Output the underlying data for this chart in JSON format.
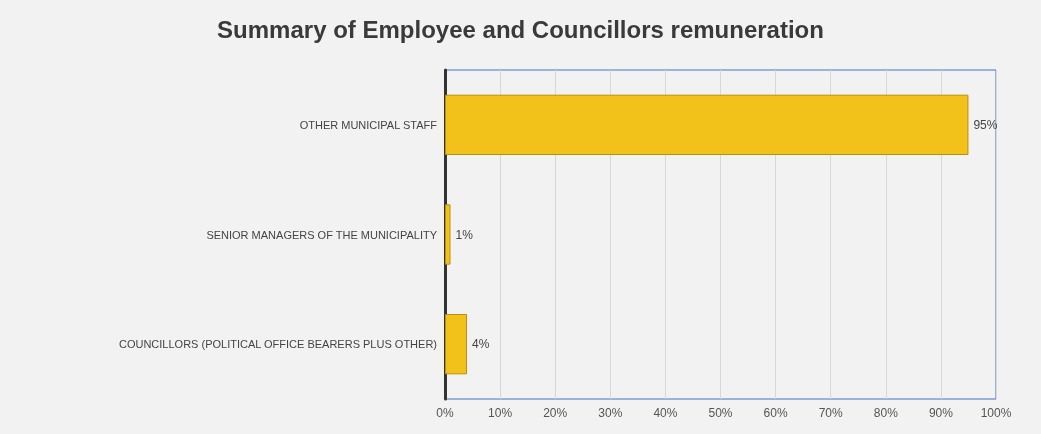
{
  "chart_data": {
    "type": "bar",
    "orientation": "horizontal",
    "title": "Summary of Employee and Councillors remuneration",
    "categories": [
      "OTHER MUNICIPAL STAFF",
      "SENIOR MANAGERS OF THE MUNICIPALITY",
      "COUNCILLORS (POLITICAL OFFICE BEARERS PLUS OTHER)"
    ],
    "values": [
      95,
      1,
      4
    ],
    "color": "#f2c21b",
    "value_labels": [
      "95%",
      "1%",
      "4%"
    ],
    "xlim": [
      0,
      100
    ],
    "xticks": [
      {
        "value": 0,
        "label": "0%"
      },
      {
        "value": 10,
        "label": "10%"
      },
      {
        "value": 20,
        "label": "20%"
      },
      {
        "value": 30,
        "label": "30%"
      },
      {
        "value": 40,
        "label": "40%"
      },
      {
        "value": 50,
        "label": "50%"
      },
      {
        "value": 60,
        "label": "60%"
      },
      {
        "value": 70,
        "label": "70%"
      },
      {
        "value": 80,
        "label": "80%"
      },
      {
        "value": 90,
        "label": "90%"
      },
      {
        "value": 100,
        "label": "100%"
      }
    ],
    "grid": "x"
  }
}
